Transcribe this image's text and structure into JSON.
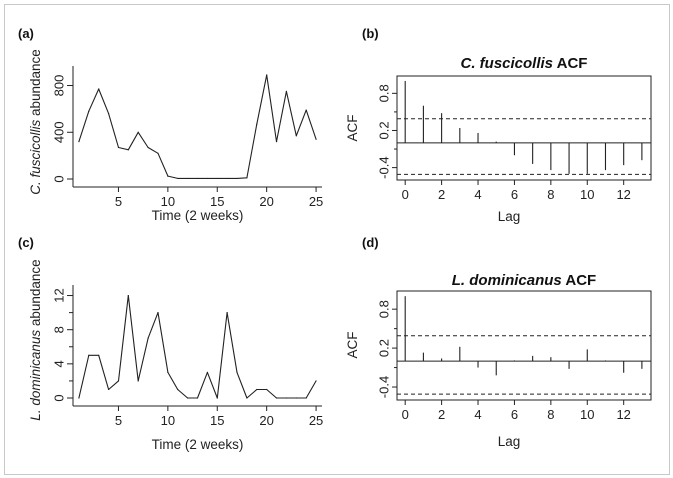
{
  "chart_data": [
    {
      "id": "a",
      "type": "line",
      "panel_label": "(a)",
      "title": "",
      "xlabel": "Time (2 weeks)",
      "ylabel_italic": "C. fuscicollis",
      "ylabel_rest": " abundance",
      "x": [
        1,
        2,
        3,
        4,
        5,
        6,
        7,
        8,
        9,
        10,
        11,
        12,
        13,
        14,
        15,
        16,
        17,
        18,
        19,
        20,
        21,
        22,
        23,
        24,
        25
      ],
      "values": [
        320,
        580,
        770,
        560,
        270,
        250,
        400,
        270,
        220,
        25,
        5,
        5,
        5,
        5,
        5,
        5,
        5,
        10,
        470,
        890,
        320,
        750,
        370,
        590,
        340
      ],
      "xlim": [
        0.4,
        25.6
      ],
      "ylim": [
        0,
        950
      ],
      "xticks": [
        5,
        10,
        15,
        20,
        25
      ],
      "yticks": [
        0,
        400,
        800
      ]
    },
    {
      "id": "b",
      "type": "bar",
      "panel_label": "(b)",
      "title_italic": "C. fuscicollis",
      "title_rest": " ACF",
      "xlabel": "Lag",
      "ylabel": "ACF",
      "x": [
        0,
        1,
        2,
        3,
        4,
        5,
        6,
        7,
        8,
        9,
        10,
        11,
        12,
        13
      ],
      "values": [
        1.0,
        0.6,
        0.48,
        0.24,
        0.16,
        0.02,
        -0.2,
        -0.34,
        -0.44,
        -0.5,
        -0.5,
        -0.44,
        -0.36,
        -0.28
      ],
      "conf_limit": 0.39,
      "xlim": [
        -0.45,
        13.5
      ],
      "ylim": [
        -0.6,
        1.08
      ],
      "xticks": [
        0,
        2,
        4,
        6,
        8,
        10,
        12
      ],
      "yticks": [
        -0.4,
        0.2,
        0.8
      ],
      "ytick_labels": [
        "-0.4",
        "0.2",
        "0.8"
      ]
    },
    {
      "id": "c",
      "type": "line",
      "panel_label": "(c)",
      "title": "",
      "xlabel": "Time (2 weeks)",
      "ylabel_italic": "L. dominicanus",
      "ylabel_rest": " abundance",
      "x": [
        1,
        2,
        3,
        4,
        5,
        6,
        7,
        8,
        9,
        10,
        11,
        12,
        13,
        14,
        15,
        16,
        17,
        18,
        19,
        20,
        21,
        22,
        23,
        24,
        25
      ],
      "values": [
        0,
        5,
        5,
        1,
        2,
        12,
        2,
        7,
        10,
        3,
        1,
        0,
        0,
        3,
        0,
        10,
        3,
        0,
        1,
        1,
        0,
        0,
        0,
        0,
        2
      ],
      "xlim": [
        0.4,
        25.6
      ],
      "ylim": [
        0,
        13
      ],
      "xticks": [
        5,
        10,
        15,
        20,
        25
      ],
      "yticks": [
        0,
        4,
        8,
        12
      ],
      "yticks_minor": [
        2,
        6,
        10
      ]
    },
    {
      "id": "d",
      "type": "bar",
      "panel_label": "(d)",
      "title_italic": "L. dominicanus",
      "title_rest": " ACF",
      "xlabel": "Lag",
      "ylabel": "ACF",
      "x": [
        0,
        1,
        2,
        3,
        4,
        5,
        6,
        7,
        8,
        9,
        10,
        11,
        12,
        13
      ],
      "values": [
        1.0,
        0.13,
        0.04,
        0.22,
        -0.1,
        -0.22,
        0.01,
        0.08,
        0.06,
        -0.12,
        0.18,
        0.01,
        -0.18,
        -0.12
      ],
      "conf_limit": 0.39,
      "xlim": [
        -0.45,
        13.5
      ],
      "ylim": [
        -0.6,
        1.08
      ],
      "xticks": [
        0,
        2,
        4,
        6,
        8,
        10,
        12
      ],
      "yticks": [
        -0.4,
        0.2,
        0.8
      ],
      "ytick_labels": [
        "-0.4",
        "0.2",
        "0.8"
      ]
    }
  ]
}
